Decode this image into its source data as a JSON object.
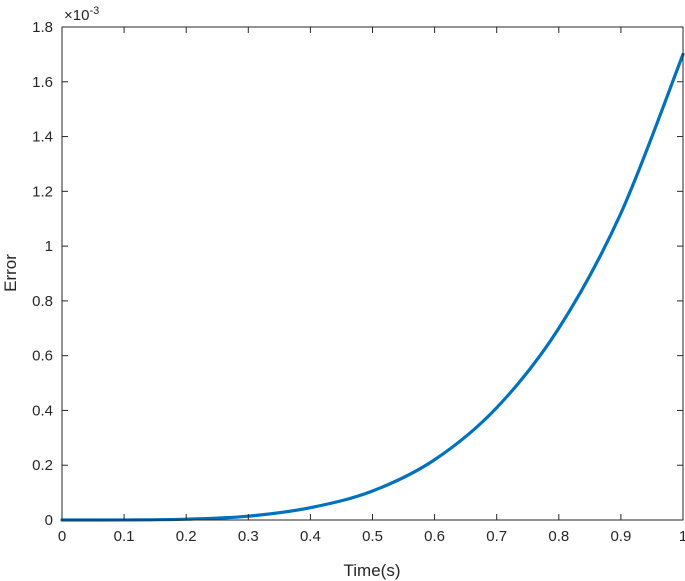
{
  "chart_data": {
    "type": "line",
    "title": "",
    "xlabel": "Time(s)",
    "ylabel": "Error",
    "y_exponent_label": "×10",
    "y_exponent_power": "-3",
    "xlim": [
      0,
      1
    ],
    "ylim": [
      0,
      1.8
    ],
    "x_ticks": [
      0,
      0.1,
      0.2,
      0.3,
      0.4,
      0.5,
      0.6,
      0.7,
      0.8,
      0.9,
      1
    ],
    "x_tick_labels": [
      "0",
      "0.1",
      "0.2",
      "0.3",
      "0.4",
      "0.5",
      "0.6",
      "0.7",
      "0.8",
      "0.9",
      "1"
    ],
    "y_ticks": [
      0,
      0.2,
      0.4,
      0.6,
      0.8,
      1,
      1.2,
      1.4,
      1.6,
      1.8
    ],
    "y_tick_labels": [
      "0",
      "0.2",
      "0.4",
      "0.6",
      "0.8",
      "1",
      "1.2",
      "1.4",
      "1.6",
      "1.8"
    ],
    "grid": false,
    "line_color": "#0072BD",
    "series": [
      {
        "x": [
          0,
          0.1,
          0.2,
          0.3,
          0.4,
          0.5,
          0.6,
          0.7,
          0.8,
          0.9,
          1.0
        ],
        "y": [
          0,
          0.0002,
          0.003,
          0.014,
          0.045,
          0.106,
          0.22,
          0.41,
          0.7,
          1.12,
          1.7
        ]
      }
    ]
  }
}
